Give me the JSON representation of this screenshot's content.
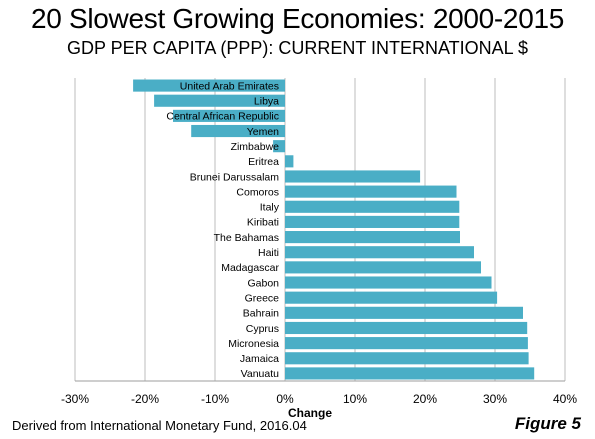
{
  "chart_data": {
    "type": "bar",
    "orientation": "horizontal",
    "title": "20 Slowest Growing Economies: 2000-2015",
    "subtitle": "GDP PER CAPITA (PPP): CURRENT INTERNATIONAL $",
    "xlabel": "Change",
    "ylabel": "",
    "xlim": [
      -0.3,
      0.4
    ],
    "xticks": [
      "-30%",
      "-20%",
      "-10%",
      "0%",
      "10%",
      "20%",
      "30%",
      "40%"
    ],
    "grid": true,
    "categories": [
      "United Arab Emirates",
      "Libya",
      "Central African Republic",
      "Yemen",
      "Zimbabwe",
      "Eritrea",
      "Brunei Darussalam",
      "Comoros",
      "Italy",
      "Kiribati",
      "The Bahamas",
      "Haiti",
      "Madagascar",
      "Gabon",
      "Greece",
      "Bahrain",
      "Cyprus",
      "Micronesia",
      "Jamaica",
      "Vanuatu"
    ],
    "values": [
      -0.217,
      -0.187,
      -0.16,
      -0.134,
      -0.017,
      0.012,
      0.193,
      0.245,
      0.249,
      0.249,
      0.25,
      0.27,
      0.28,
      0.295,
      0.303,
      0.34,
      0.346,
      0.347,
      0.348,
      0.356
    ],
    "bar_color": "#4aaec6"
  },
  "source": "Derived from International Monetary Fund, 2016.04",
  "figure_label": "Figure 5"
}
